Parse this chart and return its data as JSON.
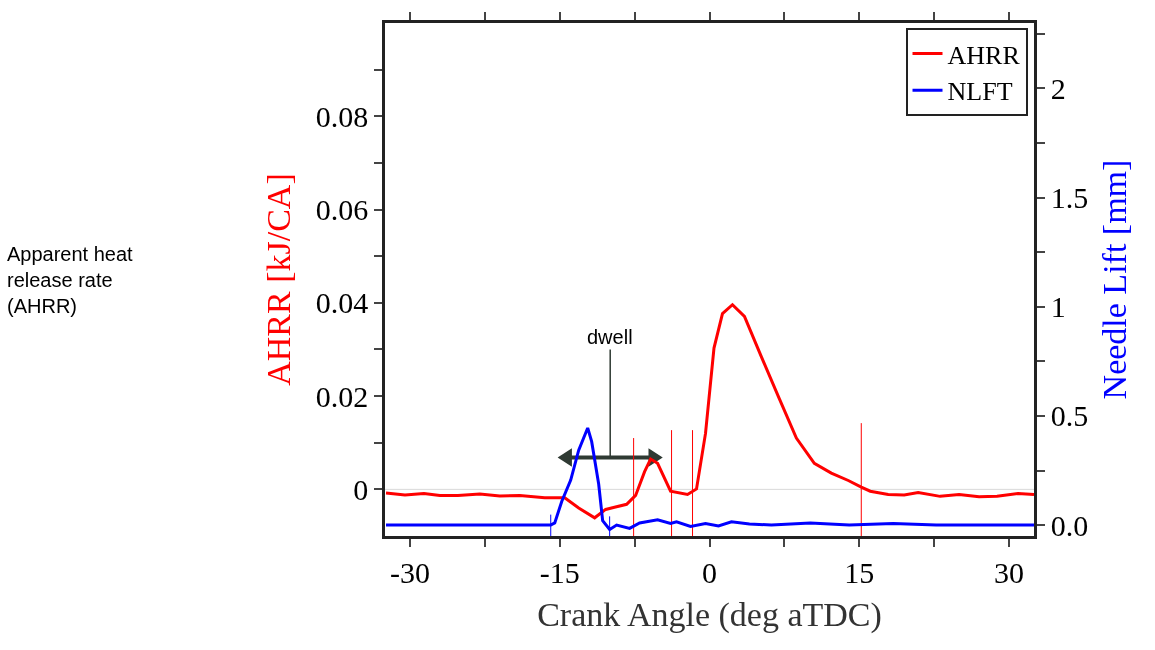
{
  "chart_data": {
    "type": "line",
    "xlabel": "Crank Angle (deg aTDC)",
    "ylabel": "AHRR [kJ/CA]",
    "y2label": "Needle Lift [mm]",
    "xlim": [
      -32.5,
      32.5
    ],
    "xticks": [
      -30,
      {
        "value": -22.5,
        "label": null
      },
      -15,
      {
        "value": -7.5,
        "label": null
      },
      0,
      {
        "value": 7.5,
        "label": null
      },
      15,
      {
        "value": 22.5,
        "label": null
      },
      30
    ],
    "ylim": [
      -0.01,
      0.1
    ],
    "yticks": [
      0,
      {
        "value": 0.01,
        "label": null
      },
      0.02,
      {
        "value": 0.03,
        "label": null
      },
      0.04,
      {
        "value": 0.05,
        "label": null
      },
      0.06,
      {
        "value": 0.07,
        "label": null
      },
      0.08,
      {
        "value": 0.09,
        "label": null
      }
    ],
    "y2lim": [
      -0.05,
      2.3
    ],
    "y2ticks": [
      {
        "value": 0,
        "label": "0.0"
      },
      {
        "value": 0.25,
        "label": null
      },
      0.5,
      {
        "value": 0.75,
        "label": null
      },
      1,
      {
        "value": 1.25,
        "label": null
      },
      1.5,
      {
        "value": 1.75,
        "label": null
      },
      2,
      {
        "value": 2.25,
        "label": null
      }
    ],
    "legend": "top right",
    "grid": false,
    "ref_lines": [
      {
        "axis": "y",
        "value": 0,
        "color": "#d9d9d9"
      }
    ],
    "annotations": [
      "Apparent heat release rate (AHRR)",
      "dwell"
    ],
    "series": [
      {
        "name": "AHRR",
        "color": "#ff0000",
        "x": [
          -32.4,
          -30.5,
          -28.6,
          -27.0,
          -25.2,
          -23.0,
          -21.0,
          -19.0,
          -16.5,
          -14.5,
          -13.1,
          -11.5,
          -10.4,
          -8.3,
          -7.4,
          -6.5,
          -5.9,
          -5.2,
          -3.9,
          -2.2,
          -1.3,
          -0.4,
          0.45,
          1.3,
          2.3,
          3.5,
          5.2,
          7.0,
          8.7,
          10.5,
          12.2,
          13.9,
          15.2,
          16.1,
          17.9,
          19.5,
          20.9,
          23.1,
          25.0,
          27.0,
          28.8,
          30.9,
          32.5
        ],
        "values": [
          -0.0008,
          -0.0012,
          -0.0009,
          -0.0013,
          -0.0013,
          -0.001,
          -0.0014,
          -0.0013,
          -0.0018,
          -0.0018,
          -0.004,
          -0.0061,
          -0.0043,
          -0.0032,
          -0.0013,
          0.0038,
          0.0065,
          0.0056,
          -0.0004,
          -0.0011,
          0.0001,
          0.012,
          0.0303,
          0.0377,
          0.0396,
          0.0371,
          0.0284,
          0.0194,
          0.011,
          0.0056,
          0.0035,
          0.0019,
          0.0005,
          -0.0004,
          -0.0011,
          -0.0012,
          -0.0007,
          -0.0015,
          -0.0011,
          -0.0016,
          -0.0015,
          -0.0009,
          -0.0011
        ]
      },
      {
        "name": "NLFT",
        "color": "#0000ff",
        "axis": "y2",
        "x": [
          -32.4,
          -15.9,
          -15.5,
          -14.8,
          -13.9,
          -13.1,
          -12.2,
          -11.8,
          -11.1,
          -10.7,
          -10.0,
          -9.3,
          -8.0,
          -7.0,
          -5.2,
          -3.9,
          -3.3,
          -1.9,
          -0.4,
          0.9,
          2.2,
          4.0,
          6.2,
          10.1,
          14.0,
          18.4,
          22.7,
          32.5
        ],
        "values": [
          0.0,
          0.0,
          0.01,
          0.108,
          0.206,
          0.343,
          0.445,
          0.382,
          0.188,
          0.02,
          -0.02,
          0.0,
          -0.015,
          0.01,
          0.024,
          0.007,
          0.015,
          -0.006,
          0.007,
          -0.004,
          0.015,
          0.005,
          0.0,
          0.01,
          0.0,
          0.007,
          0.0,
          0.0
        ]
      },
      {
        "color": "#ff0000",
        "x": [
          -7.6,
          -7.6
        ],
        "values": [
          -0.01,
          0.011
        ]
      },
      {
        "color": "#ff0000",
        "x": [
          -3.8,
          -3.8
        ],
        "values": [
          -0.01,
          0.0127
        ]
      },
      {
        "color": "#ff0000",
        "x": [
          -1.7,
          -1.7
        ],
        "values": [
          -0.01,
          0.0127
        ]
      },
      {
        "color": "#ff0000",
        "x": [
          15.2,
          15.2
        ],
        "values": [
          -0.01,
          0.0142
        ]
      },
      {
        "color": "#0000ff",
        "axis": "y2",
        "x": [
          -15.9,
          -15.9
        ],
        "values": [
          -0.05,
          0.048
        ]
      },
      {
        "color": "#0000ff",
        "axis": "y2",
        "x": [
          -10.0,
          -10.0
        ],
        "values": [
          -0.05,
          0.04
        ]
      }
    ]
  }
}
